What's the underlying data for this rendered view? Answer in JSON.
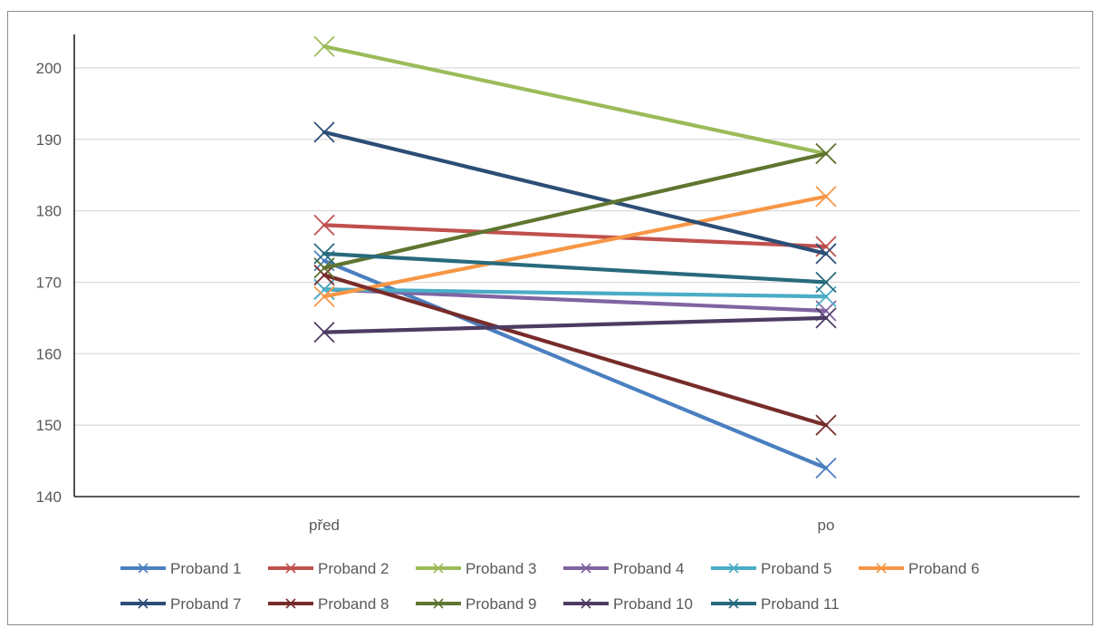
{
  "chart_data": {
    "type": "line",
    "title": "",
    "xlabel": "",
    "ylabel": "",
    "categories": [
      "před",
      "po"
    ],
    "ylim": [
      140,
      205
    ],
    "yticks": [
      140,
      150,
      160,
      170,
      180,
      190,
      200
    ],
    "grid": true,
    "legend_position": "bottom",
    "marker": "x",
    "series": [
      {
        "name": "Proband 1",
        "color": "#4a7fc0",
        "values": [
          173,
          144
        ]
      },
      {
        "name": "Proband 2",
        "color": "#c0504d",
        "values": [
          178,
          175
        ]
      },
      {
        "name": "Proband 3",
        "color": "#9bbb59",
        "values": [
          203,
          188
        ]
      },
      {
        "name": "Proband 4",
        "color": "#8064a2",
        "values": [
          169,
          166
        ]
      },
      {
        "name": "Proband 5",
        "color": "#4bacc6",
        "values": [
          169,
          168
        ]
      },
      {
        "name": "Proband 6",
        "color": "#f79646",
        "values": [
          168,
          182
        ]
      },
      {
        "name": "Proband 7",
        "color": "#2c4d75",
        "values": [
          191,
          174
        ]
      },
      {
        "name": "Proband 8",
        "color": "#772c2a",
        "values": [
          171,
          150
        ]
      },
      {
        "name": "Proband 9",
        "color": "#5f7530",
        "values": [
          172,
          188
        ]
      },
      {
        "name": "Proband 10",
        "color": "#4d3b62",
        "values": [
          163,
          165
        ]
      },
      {
        "name": "Proband 11",
        "color": "#276a7c",
        "values": [
          174,
          170
        ]
      }
    ]
  }
}
